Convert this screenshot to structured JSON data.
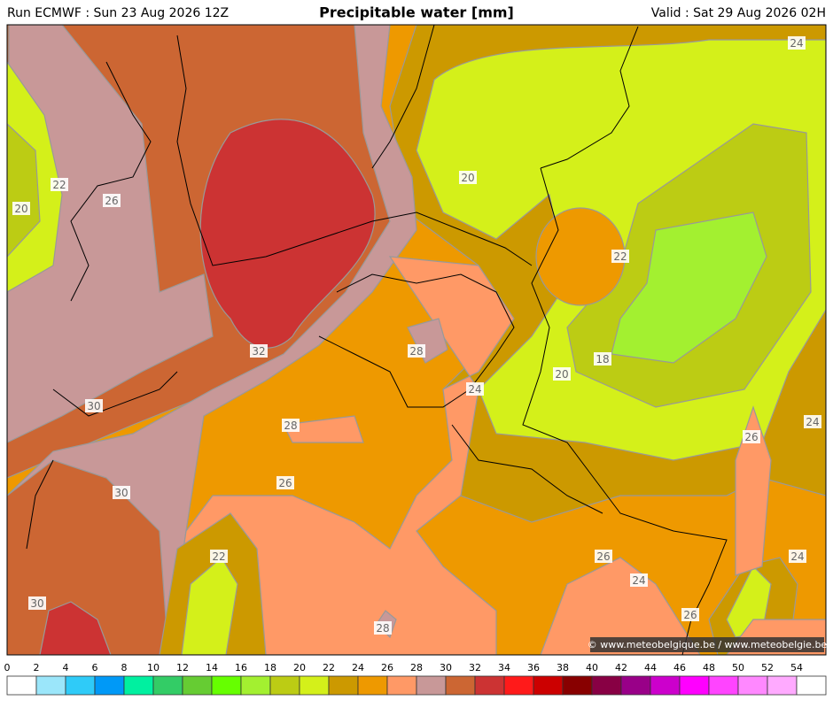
{
  "header": {
    "run": "Run ECMWF : Sun 23 Aug 2026 12Z",
    "title": "Precipitable water [mm]",
    "valid": "Valid : Sat 29 Aug 2026 02H"
  },
  "contour_labels": [
    24,
    20,
    22,
    26,
    20,
    22,
    32,
    28,
    18,
    20,
    24,
    30,
    28,
    24,
    26,
    26,
    30,
    22,
    26,
    24,
    24,
    30,
    26,
    28
  ],
  "colorbar": {
    "ticks": [
      0,
      2,
      4,
      6,
      8,
      10,
      12,
      14,
      16,
      18,
      20,
      22,
      24,
      26,
      28,
      30,
      32,
      34,
      36,
      38,
      40,
      42,
      44,
      46,
      48,
      50,
      52,
      54
    ],
    "colors": [
      "#ffffff",
      "#9be6fa",
      "#2fcbf8",
      "#0099f7",
      "#00f0a0",
      "#33cc66",
      "#66cc33",
      "#66ff00",
      "#a3f030",
      "#bccc14",
      "#d4f01a",
      "#cc9900",
      "#ee9900",
      "#ff9966",
      "#c89898",
      "#cc6633",
      "#cc3333",
      "#ff1a1a",
      "#cc0000",
      "#880000",
      "#880044",
      "#990088",
      "#cc00cc",
      "#ff00ff",
      "#ff44ff",
      "#ff88ff",
      "#ffaaff",
      "#ffffff"
    ]
  },
  "copyright": "© www.meteobelgique.be / www.meteobelgie.be"
}
